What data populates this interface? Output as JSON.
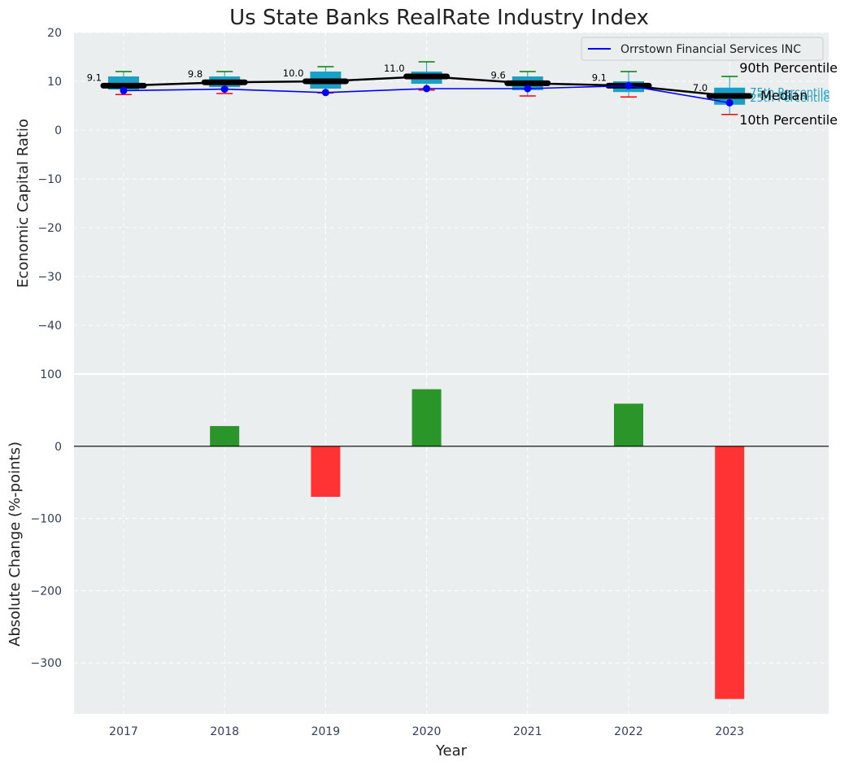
{
  "chart_data": [
    {
      "type": "box",
      "title": "Us State Banks RealRate Industry Index",
      "ylabel": "Economic Capital Ratio",
      "xlabel": "",
      "ylim": [
        -47,
        20
      ],
      "yticks": [
        20,
        10,
        0,
        -10,
        -20,
        -30,
        -40
      ],
      "ytick_labels": [
        "20",
        "10",
        "0",
        "−10",
        "−20",
        "−30",
        "−40"
      ],
      "categories": [
        "2017",
        "2018",
        "2019",
        "2020",
        "2021",
        "2022",
        "2023"
      ],
      "grid": true,
      "industry": {
        "p10": [
          7.3,
          7.5,
          7.6,
          8.2,
          7.0,
          6.8,
          3.2
        ],
        "p25": [
          8.3,
          8.8,
          8.5,
          9.5,
          8.2,
          7.8,
          5.2
        ],
        "median": [
          9.1,
          9.8,
          10.0,
          11.0,
          9.6,
          9.1,
          7.0
        ],
        "p75": [
          11.0,
          11.0,
          12.0,
          12.0,
          11.0,
          10.0,
          8.7
        ],
        "p90": [
          12.0,
          12.0,
          13.0,
          14.0,
          12.0,
          12.0,
          11.0
        ],
        "median_labels": [
          "9.1",
          "9.8",
          "10.0",
          "11.0",
          "9.6",
          "9.1",
          "7.0"
        ]
      },
      "series": [
        {
          "name": "Orrstown Financial Services INC",
          "values": [
            8.1,
            8.4,
            7.7,
            8.5,
            8.5,
            9.1,
            5.6
          ],
          "color": "#0000ff"
        }
      ],
      "annotations": {
        "p90": "90th Percentile",
        "p75": "75th Percentile",
        "median": "Median",
        "p25": "25th Percentile",
        "p10": "10th Percentile"
      },
      "legend_location": "top-right",
      "colors": {
        "box": "#1a9fc6",
        "median": "#000000",
        "p90_cap": "#008000",
        "p10_cap": "#ff0000",
        "background": "#eaeeee",
        "grid": "#ffffff"
      }
    },
    {
      "type": "bar",
      "title": "",
      "xlabel": "Year",
      "ylabel": "Absolute Change (%-points)",
      "ylim": [
        -370,
        100
      ],
      "yticks": [
        100,
        0,
        -100,
        -200,
        -300
      ],
      "ytick_labels": [
        "100",
        "0",
        "−100",
        "−200",
        "−300"
      ],
      "categories": [
        "2017",
        "2018",
        "2019",
        "2020",
        "2021",
        "2022",
        "2023"
      ],
      "values": [
        0,
        28,
        -70,
        79,
        0,
        59,
        -350
      ],
      "grid": true,
      "colors": {
        "positive": "#2a962a",
        "negative": "#ff3333",
        "zero_line": "#000000"
      }
    }
  ]
}
